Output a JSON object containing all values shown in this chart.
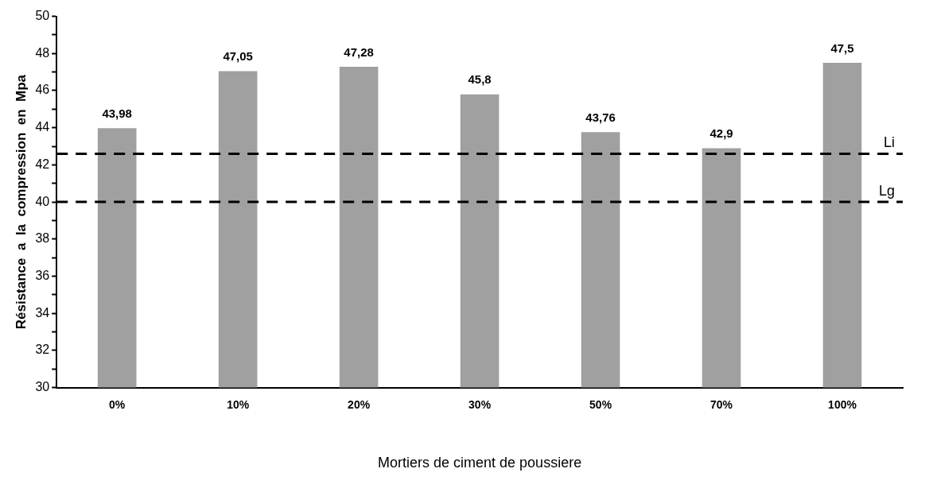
{
  "chart_data": {
    "type": "bar",
    "xlabel": "Mortiers de ciment de poussiere",
    "ylabel": "Résistance  a  la  compression  en  Mpa",
    "categories": [
      "0%",
      "10%",
      "20%",
      "30%",
      "50%",
      "70%",
      "100%"
    ],
    "values": [
      43.98,
      47.05,
      47.28,
      45.8,
      43.76,
      42.9,
      47.5
    ],
    "value_labels": [
      "43,98",
      "47,05",
      "47,28",
      "45,8",
      "43,76",
      "42,9",
      "47,5"
    ],
    "color": "#a0a0a0",
    "ylim": [
      30,
      50
    ],
    "yticks": [
      30,
      {
        "value": 31,
        "label": null
      },
      32,
      {
        "value": 33,
        "label": null
      },
      34,
      {
        "value": 35,
        "label": null
      },
      36,
      {
        "value": 37,
        "label": null
      },
      38,
      {
        "value": 39,
        "label": null
      },
      40,
      {
        "value": 41,
        "label": null
      },
      42,
      {
        "value": 43,
        "label": null
      },
      44,
      {
        "value": 45,
        "label": null
      },
      46,
      {
        "value": 47,
        "label": null
      },
      48,
      {
        "value": 49,
        "label": null
      },
      50
    ],
    "ref_lines": [
      {
        "axis": "y",
        "value": 42.6,
        "label": "Li",
        "color": "#000000",
        "line_style": "dashed"
      },
      {
        "axis": "y",
        "value": 40,
        "label": "Lg",
        "color": "#000000",
        "line_style": "dashed"
      }
    ],
    "grid": false,
    "legend": false
  }
}
